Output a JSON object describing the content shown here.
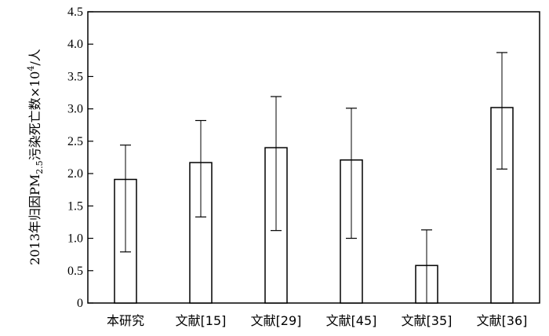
{
  "chart_data": {
    "type": "bar",
    "title": "",
    "xlabel": "",
    "ylabel": {
      "prefix": "2013年归因PM",
      "subscript": "2.5",
      "middle": "污染死亡数×10",
      "superscript": "4",
      "suffix": "/人"
    },
    "ylim": [
      0,
      4.5
    ],
    "y_ticks": [
      "0",
      "0.5",
      "1.0",
      "1.5",
      "2.0",
      "2.5",
      "3.0",
      "3.5",
      "4.0",
      "4.5"
    ],
    "categories": [
      "本研究",
      "文献[15]",
      "文献[29]",
      "文献[45]",
      "文献[35]",
      "文献[36]"
    ],
    "values": [
      1.91,
      2.17,
      2.4,
      2.21,
      0.58,
      3.02
    ],
    "error_low": [
      0.79,
      1.33,
      1.12,
      1.0,
      0.0,
      2.07
    ],
    "error_high": [
      2.44,
      2.82,
      3.19,
      3.01,
      1.13,
      3.87
    ],
    "grid": false,
    "legend": "none"
  }
}
